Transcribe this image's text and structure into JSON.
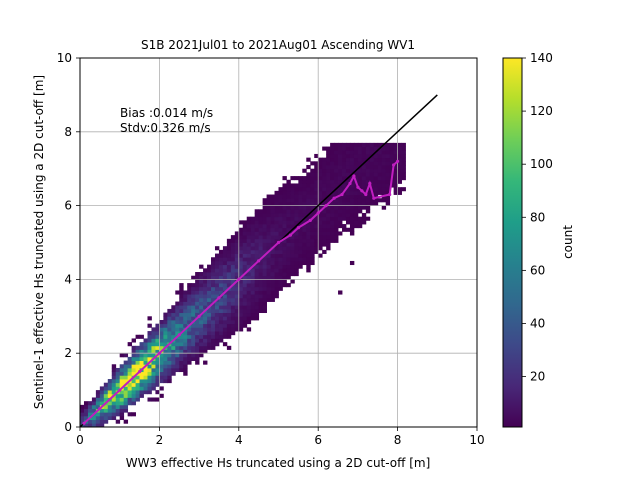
{
  "chart_data": {
    "type": "heatmap",
    "title": "S1B 2021Jul01 to 2021Aug01 Ascending WV1",
    "xlabel": "WW3 effective Hs truncated using a 2D cut-off [m]",
    "ylabel": "Sentinel-1 effective Hs truncated using a 2D cut-off [m]",
    "xlim": [
      0,
      10
    ],
    "ylim": [
      0,
      10
    ],
    "xticks": [
      0,
      2,
      4,
      6,
      8,
      10
    ],
    "yticks": [
      0,
      2,
      4,
      6,
      8,
      10
    ],
    "grid": true,
    "bin_size": 0.1,
    "colormap": "viridis",
    "colorbar": {
      "label": "count",
      "min": 1,
      "max": 140,
      "ticks": [
        20,
        40,
        60,
        80,
        100,
        120,
        140
      ],
      "colors": [
        "#440154",
        "#482878",
        "#3e4989",
        "#31688e",
        "#26828e",
        "#1f9e89",
        "#35b779",
        "#6ece58",
        "#b5de2b",
        "#fde725"
      ]
    },
    "annotations": [
      "Bias :0.014 m/s",
      "Stdv:0.326 m/s"
    ],
    "identity_line": {
      "x": [
        0,
        9
      ],
      "y": [
        0,
        9
      ],
      "color": "#000000"
    },
    "binned_mean": {
      "color": "#c01ec0",
      "x": [
        0.1,
        0.5,
        1.0,
        1.5,
        2.0,
        2.5,
        3.0,
        3.5,
        4.0,
        4.5,
        5.0,
        5.3,
        5.5,
        5.8,
        6.0,
        6.2,
        6.4,
        6.6,
        6.8,
        6.9,
        7.0,
        7.1,
        7.2,
        7.3,
        7.4,
        7.8,
        7.9,
        8.0
      ],
      "y": [
        0.1,
        0.5,
        1.0,
        1.5,
        2.0,
        2.5,
        3.0,
        3.5,
        4.0,
        4.5,
        5.0,
        5.2,
        5.4,
        5.6,
        5.8,
        6.0,
        6.2,
        6.3,
        6.6,
        6.8,
        6.5,
        6.4,
        6.3,
        6.6,
        6.2,
        6.3,
        7.1,
        7.2
      ]
    },
    "density": {
      "x_start": 0,
      "x_end": 8.1,
      "core_count": 140,
      "spread_base": 0.18,
      "spread_slope": 0.11
    }
  }
}
